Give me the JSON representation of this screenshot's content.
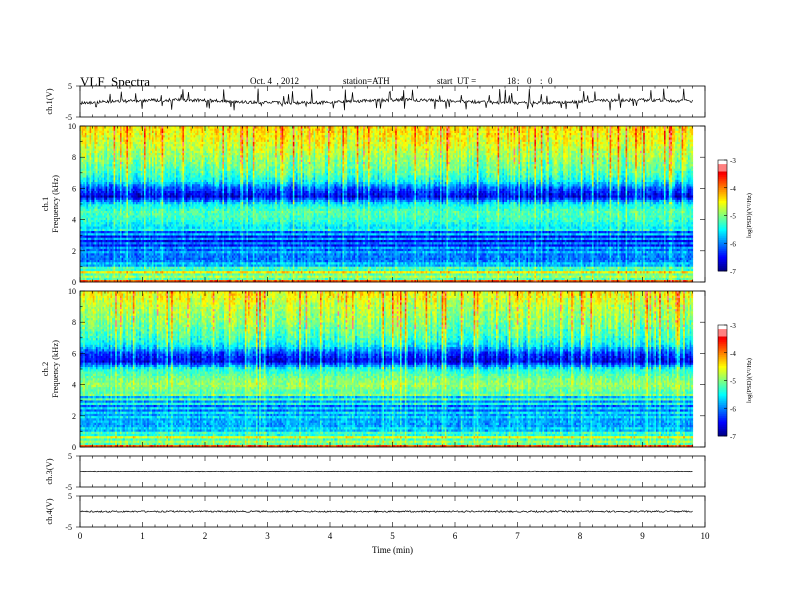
{
  "header": {
    "title": "VLF  Spectra",
    "date": "Oct. 4  , 2012",
    "station": "station=ATH",
    "start_label": "start  UT =",
    "hh": "18",
    "mm": "0",
    "ss": "0",
    "sep": ":"
  },
  "chart_data": [
    {
      "type": "line",
      "name": "ch1-waveform",
      "ylabel": "ch.1(V)",
      "yticks": [
        "5",
        "-5"
      ],
      "ylim": [
        -5,
        5
      ],
      "xlim": [
        0,
        10
      ],
      "baseline": 0,
      "data_end": 9.8
    },
    {
      "type": "heatmap",
      "name": "ch1-spectrogram",
      "ylabel_top": "ch.1",
      "ylabel": "Frequency  (kHz)",
      "yticks": [
        "0",
        "2",
        "4",
        "6",
        "8",
        "10"
      ],
      "ylim": [
        0,
        10
      ],
      "xlim": [
        0,
        10
      ],
      "data_end": 9.8,
      "colorbar": {
        "label": "log(PSD)(V²/Hz)",
        "ticks": [
          "-3",
          "-4",
          "-5",
          "-6",
          "-7"
        ],
        "range": [
          -7,
          -3
        ]
      },
      "profile_khz": [
        0.1,
        0.3,
        0.6,
        1,
        1.5,
        2,
        2.5,
        3,
        3.5,
        4,
        4.5,
        5,
        5.5,
        6,
        6.5,
        7,
        8,
        9,
        10
      ],
      "profile_logpsd": [
        -4.2,
        -5.3,
        -4.6,
        -5.6,
        -6.1,
        -5.9,
        -6.3,
        -6.1,
        -5.6,
        -5.3,
        -5.2,
        -5.5,
        -6.6,
        -6.2,
        -5.5,
        -5.2,
        -4.9,
        -4.6,
        -4.4
      ]
    },
    {
      "type": "heatmap",
      "name": "ch2-spectrogram",
      "ylabel_top": "ch.2",
      "ylabel": "Frequency  (kHz)",
      "yticks": [
        "0",
        "2",
        "4",
        "6",
        "8",
        "10"
      ],
      "ylim": [
        0,
        10
      ],
      "xlim": [
        0,
        10
      ],
      "data_end": 9.8,
      "colorbar": {
        "label": "log(PSD)(V²/Hz)",
        "ticks": [
          "-3",
          "-4",
          "-5",
          "-6",
          "-7"
        ],
        "range": [
          -7,
          -3
        ]
      },
      "profile_khz": [
        0.1,
        0.3,
        0.6,
        1,
        1.5,
        2,
        2.5,
        3,
        3.5,
        4,
        4.5,
        5,
        5.5,
        6,
        6.5,
        7,
        8,
        9,
        10
      ],
      "profile_logpsd": [
        -4.2,
        -5.3,
        -4.8,
        -5.6,
        -5.9,
        -5.7,
        -5.9,
        -5.6,
        -5.2,
        -4.9,
        -5.1,
        -5.4,
        -6.6,
        -6.3,
        -5.6,
        -5.3,
        -5.0,
        -4.8,
        -4.5
      ]
    },
    {
      "type": "line",
      "name": "ch3-waveform",
      "ylabel": "ch.3(V)",
      "yticks": [
        "5",
        "-5"
      ],
      "ylim": [
        -5,
        5
      ],
      "xlim": [
        0,
        10
      ],
      "baseline": 0,
      "data_end": 9.8
    },
    {
      "type": "line",
      "name": "ch4-waveform",
      "ylabel": "ch.4(V)",
      "yticks": [
        "5",
        "-5"
      ],
      "ylim": [
        -5,
        5
      ],
      "xlim": [
        0,
        10
      ],
      "baseline": 0,
      "data_end": 9.8,
      "xlabel": "Time  (min)",
      "xticks": [
        "0",
        "1",
        "2",
        "3",
        "4",
        "5",
        "6",
        "7",
        "8",
        "9",
        "10"
      ]
    }
  ]
}
